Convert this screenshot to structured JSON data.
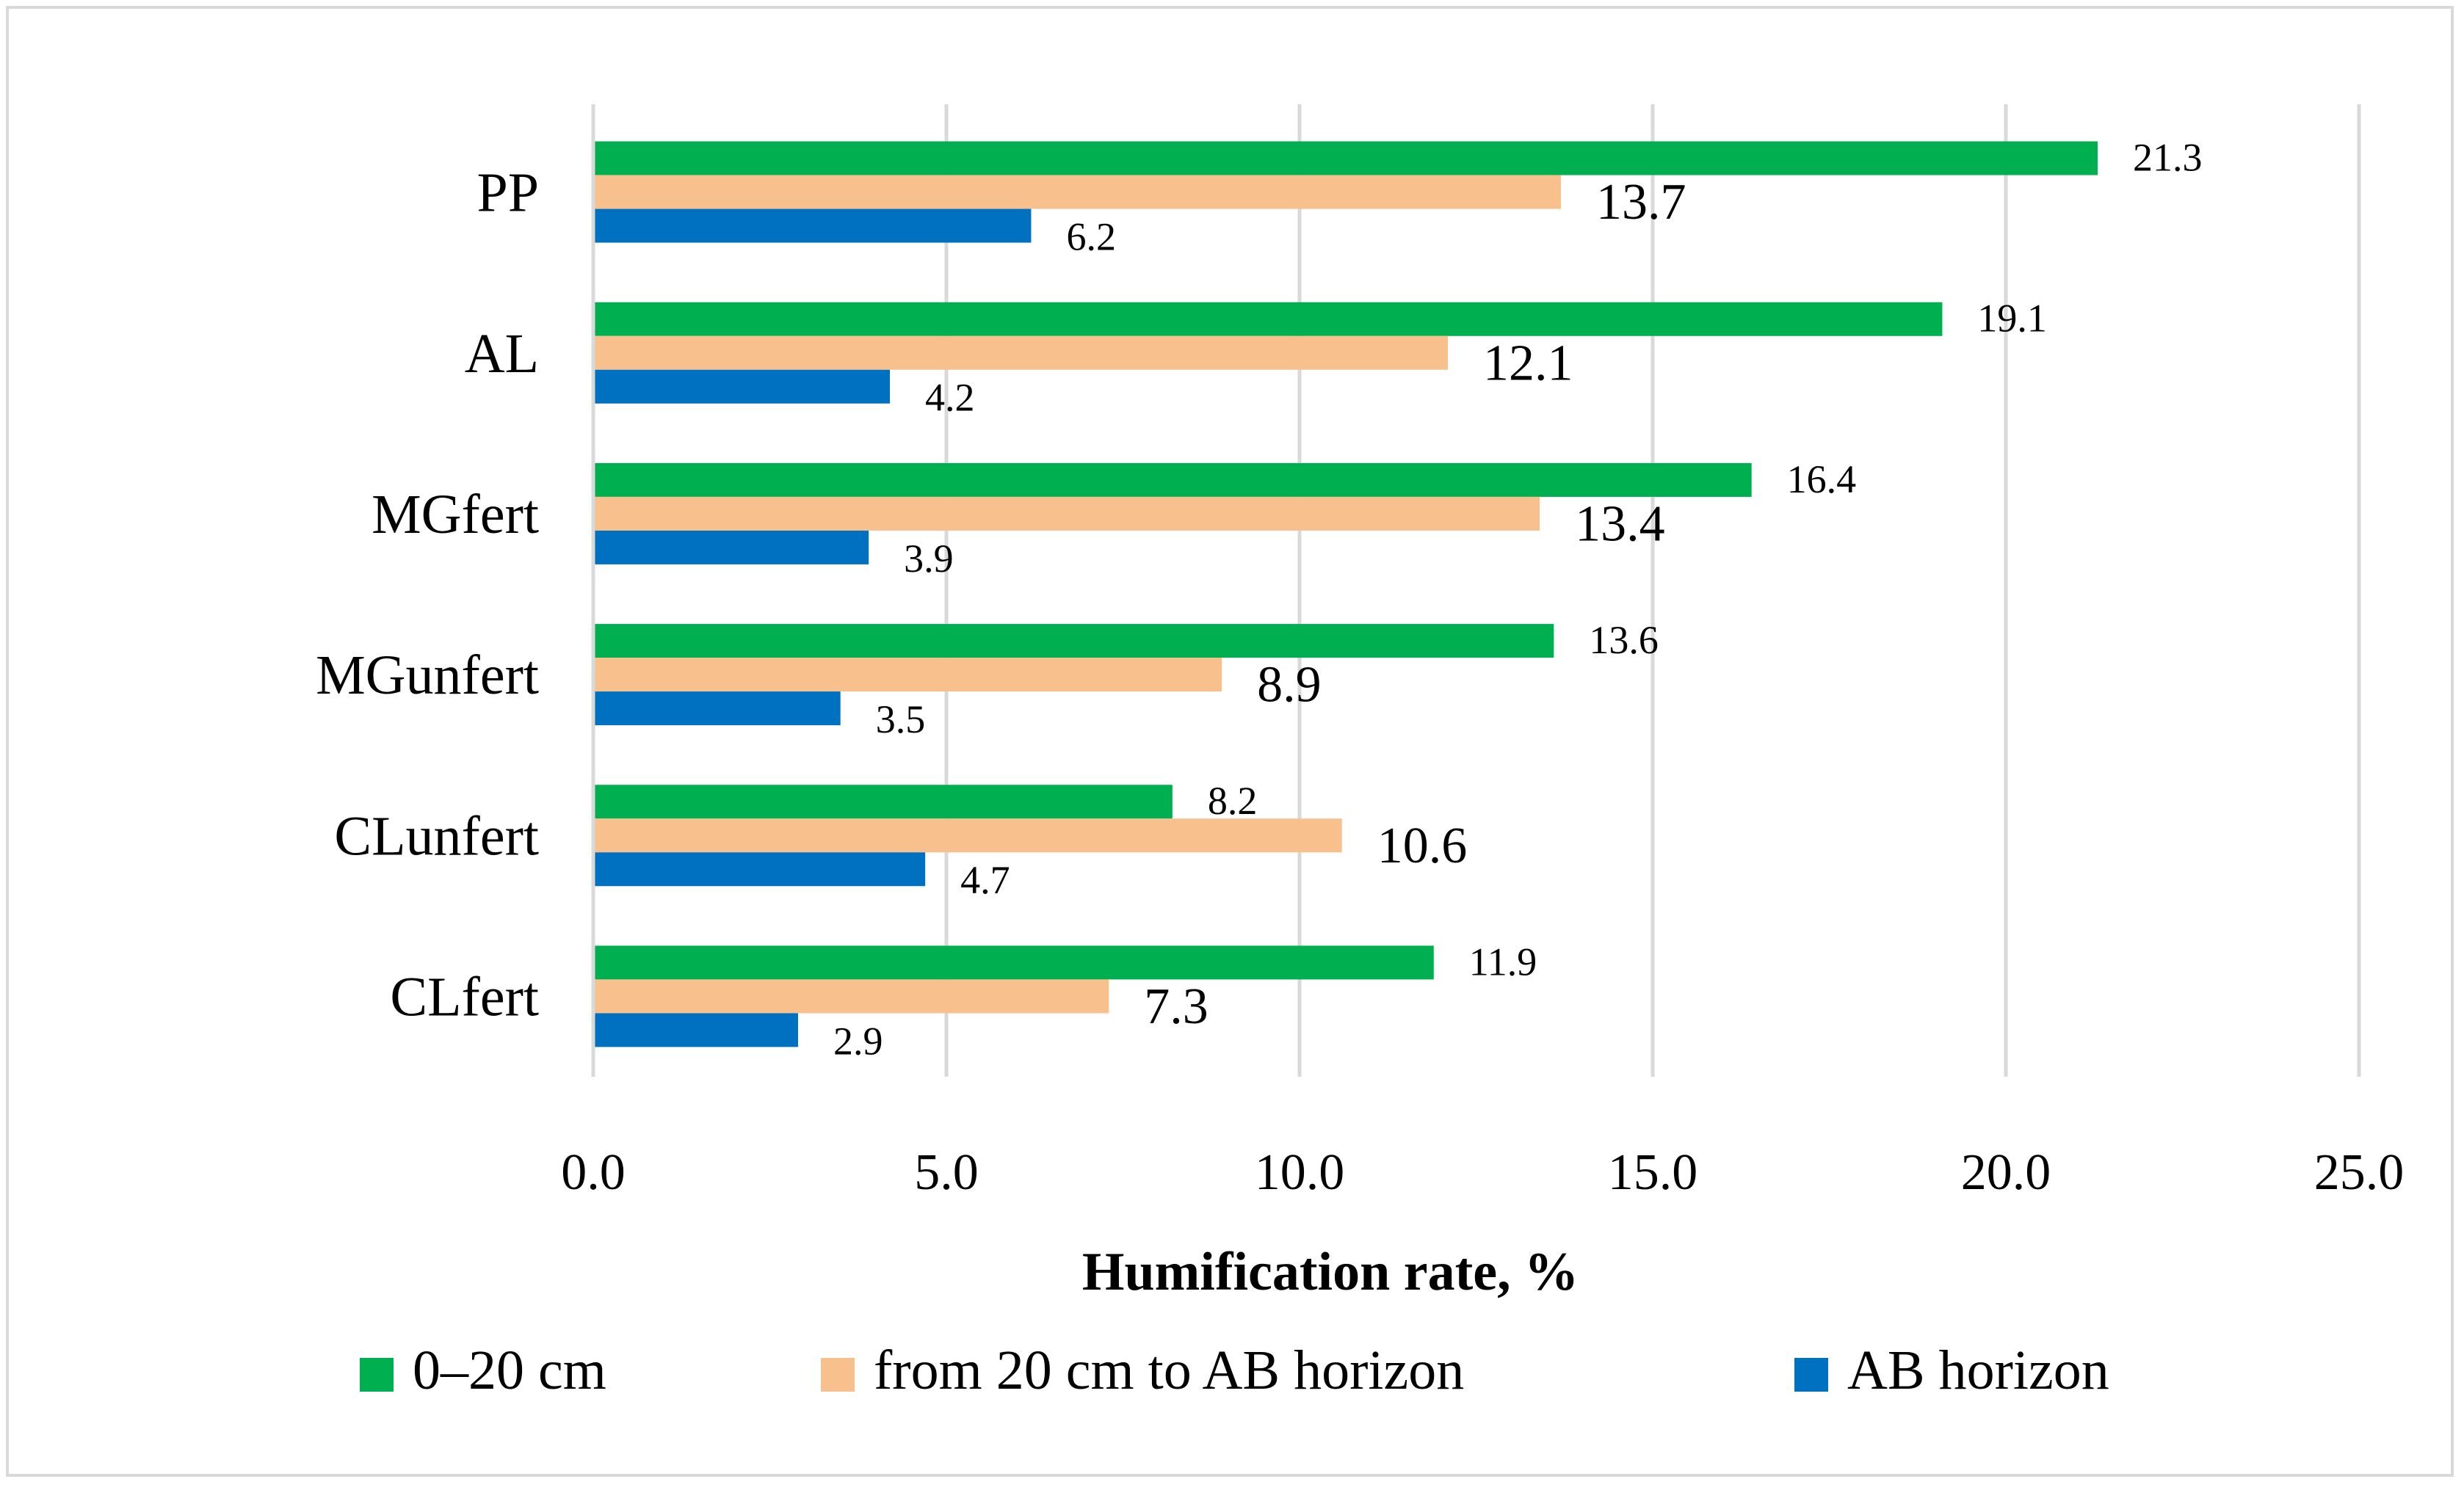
{
  "chart_data": {
    "type": "bar",
    "orientation": "horizontal",
    "title": "",
    "xlabel": "Humification rate, %",
    "ylabel": "",
    "xlim": [
      0,
      25
    ],
    "x_ticks": [
      "0.0",
      "5.0",
      "10.0",
      "15.0",
      "20.0",
      "25.0"
    ],
    "grid": true,
    "legend_position": "bottom",
    "categories": [
      "PP",
      "AL",
      "MGfert",
      "MGunfert",
      "CLunfert",
      "CLfert"
    ],
    "series": [
      {
        "name": "0–20 cm",
        "color": "#00b050",
        "values": [
          21.3,
          19.1,
          16.4,
          13.6,
          8.2,
          11.9
        ],
        "labels": [
          "21.3",
          "19.1",
          "16.4",
          "13.6",
          "8.2",
          "11.9"
        ]
      },
      {
        "name": "from 20 cm to AB horizon",
        "color": "#f8c08c",
        "values": [
          13.7,
          12.1,
          13.4,
          8.9,
          10.6,
          7.3
        ],
        "labels": [
          "13.7",
          "12.1",
          "13.4",
          "8.9",
          "10.6",
          "7.3"
        ]
      },
      {
        "name": "AB horizon",
        "color": "#0070c0",
        "values": [
          6.2,
          4.2,
          3.9,
          3.5,
          4.7,
          2.9
        ],
        "labels": [
          "6.2",
          "4.2",
          "3.9",
          "3.5",
          "4.7",
          "2.9"
        ]
      }
    ]
  }
}
